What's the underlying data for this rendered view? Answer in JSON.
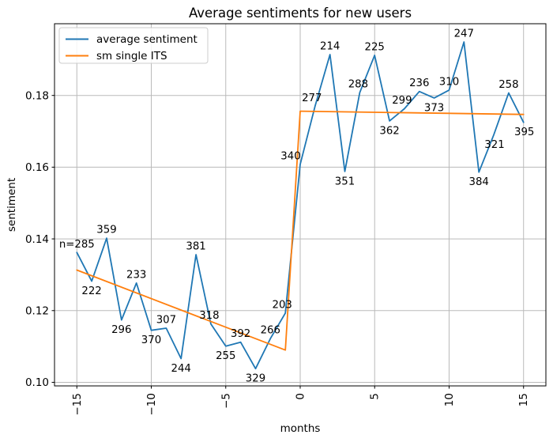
{
  "title": "Average sentiments for new users",
  "colors": {
    "series_blue": "#1f77b4",
    "series_orange": "#ff7f0e",
    "grid": "#bababa",
    "spine": "#000000",
    "legend_border": "#cccccc",
    "background": "#ffffff"
  },
  "legend": {
    "position": "upper left",
    "items": [
      {
        "label": "average sentiment",
        "color": "#1f77b4"
      },
      {
        "label": "sm single ITS",
        "color": "#ff7f0e"
      }
    ]
  },
  "chart_data": {
    "type": "line",
    "title": "Average sentiments for new users",
    "xlabel": "months",
    "ylabel": "sentiment",
    "xlim": [
      -16.5,
      16.5
    ],
    "ylim": [
      0.099,
      0.2
    ],
    "grid": true,
    "legend_position": "upper left",
    "xticks": [
      -15,
      -10,
      -5,
      0,
      5,
      10,
      15
    ],
    "xtick_labels": [
      "−15",
      "−10",
      "−5",
      "0",
      "5",
      "10",
      "15"
    ],
    "xtick_rotation": 90,
    "yticks": [
      0.1,
      0.12,
      0.14,
      0.16,
      0.18
    ],
    "ytick_labels": [
      "0.10",
      "0.12",
      "0.14",
      "0.16",
      "0.18"
    ],
    "series": [
      {
        "name": "average sentiment",
        "color": "#1f77b4",
        "x": [
          -15,
          -14,
          -13,
          -12,
          -11,
          -10,
          -9,
          -8,
          -7,
          -6,
          -5,
          -4,
          -3,
          -2,
          -1,
          0,
          1,
          2,
          3,
          4,
          5,
          6,
          7,
          8,
          9,
          10,
          11,
          12,
          13,
          14,
          15
        ],
        "y": [
          0.1362,
          0.1282,
          0.1402,
          0.1174,
          0.1277,
          0.1145,
          0.1151,
          0.1066,
          0.1356,
          0.1163,
          0.1101,
          0.1112,
          0.1038,
          0.1122,
          0.1193,
          0.1608,
          0.177,
          0.1914,
          0.1588,
          0.1808,
          0.1912,
          0.1729,
          0.1763,
          0.1811,
          0.1793,
          0.1815,
          0.1949,
          0.1586,
          0.169,
          0.1807,
          0.1725
        ],
        "point_labels": [
          "n=285",
          "222",
          "359",
          "296",
          "233",
          "370",
          "307",
          "244",
          "381",
          "318",
          "255",
          "392",
          "329",
          "266",
          "203",
          "340",
          "277",
          "214",
          "351",
          "288",
          "225",
          "362",
          "299",
          "236",
          "373",
          "310",
          "247",
          "384",
          "321",
          "258",
          "395"
        ],
        "label_pos": [
          "above",
          "below",
          "above",
          "below",
          "above",
          "below",
          "above",
          "below",
          "above",
          "above",
          "below",
          "above",
          "below",
          "above",
          "above",
          "above",
          "above",
          "above",
          "below",
          "above",
          "above",
          "below",
          "above",
          "above",
          "below",
          "above",
          "above",
          "below",
          "below",
          "above",
          "below"
        ],
        "label_dx": [
          0,
          0,
          0,
          0,
          0,
          0,
          0,
          0,
          0,
          -2,
          0,
          0,
          0,
          0,
          -4,
          -12,
          -4,
          0,
          0,
          -2,
          0,
          0,
          -3,
          0,
          0,
          0,
          0,
          0,
          1,
          0,
          1
        ]
      },
      {
        "name": "sm single ITS",
        "color": "#ff7f0e",
        "x": [
          -15,
          -1,
          0,
          15
        ],
        "y": [
          0.1313,
          0.109,
          0.1756,
          0.1747
        ],
        "point_labels": [],
        "label_pos": [],
        "label_dx": []
      }
    ]
  }
}
